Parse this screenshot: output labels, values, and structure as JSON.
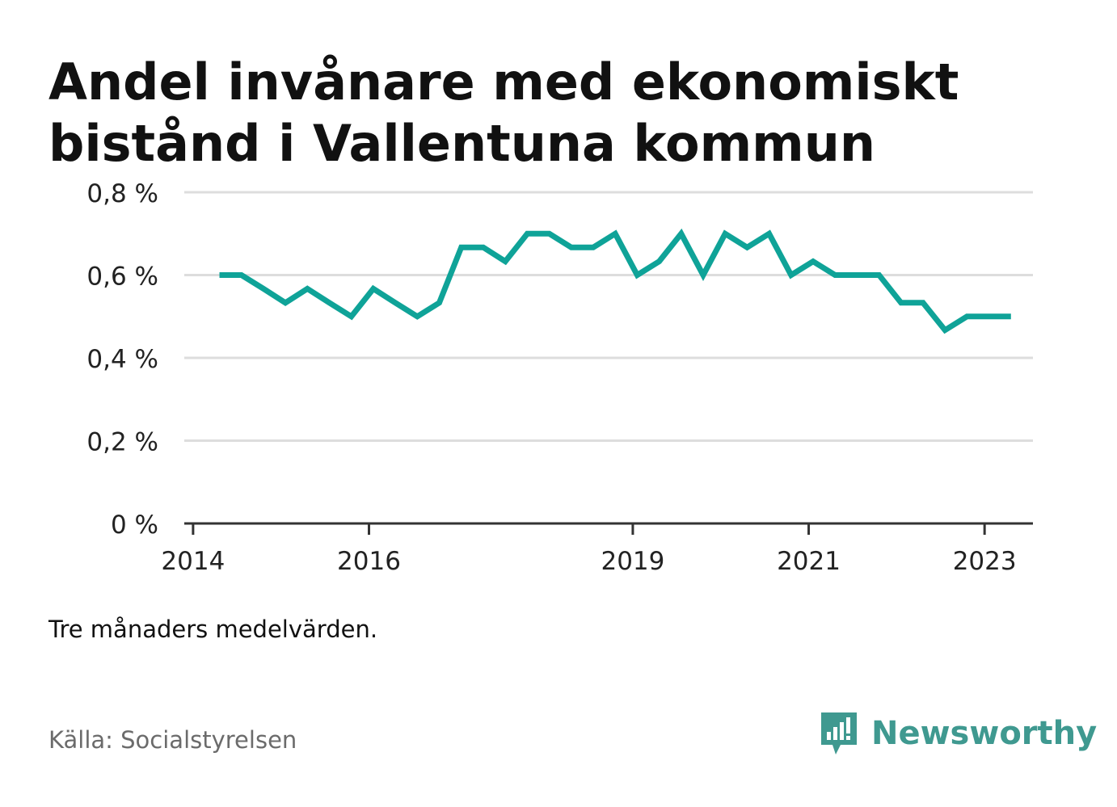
{
  "title": "Andel invånare med ekonomiskt bistånd i Vallentuna kommun",
  "note": "Tre månaders medelvärden.",
  "source": "Källa: Socialstyrelsen",
  "brand": {
    "name": "Newsworthy",
    "icon": "newsworthy-logo-icon",
    "color": "#3f9990"
  },
  "chart_data": {
    "type": "line",
    "title": "Andel invånare med ekonomiskt bistånd i Vallentuna kommun",
    "xlabel": "",
    "ylabel": "",
    "x_ticks": [
      {
        "label": "2014",
        "x": 2014.0
      },
      {
        "label": "2016",
        "x": 2016.0
      },
      {
        "label": "2019",
        "x": 2019.0
      },
      {
        "label": "2021",
        "x": 2021.0
      },
      {
        "label": "2023",
        "x": 2023.0
      }
    ],
    "y_ticks": [
      {
        "label": "0 %",
        "y": 0
      },
      {
        "label": "0,2 %",
        "y": 0.2
      },
      {
        "label": "0,4 %",
        "y": 0.4
      },
      {
        "label": "0,6 %",
        "y": 0.6
      },
      {
        "label": "0,8 %",
        "y": 0.8
      }
    ],
    "xlim": [
      2013.9,
      2023.55
    ],
    "ylim": [
      0,
      0.8
    ],
    "grid": true,
    "color": "#0fa398",
    "series": [
      {
        "x": [
          2014.3,
          2014.55,
          2014.8,
          2015.05,
          2015.3,
          2015.55,
          2015.8,
          2016.05,
          2016.3,
          2016.55,
          2016.8,
          2017.05,
          2017.3,
          2017.55,
          2017.8,
          2018.05,
          2018.3,
          2018.55,
          2018.8,
          2019.05,
          2019.3,
          2019.55,
          2019.8,
          2020.05,
          2020.3,
          2020.55,
          2020.8,
          2021.05,
          2021.3,
          2021.55,
          2021.8,
          2022.05,
          2022.3,
          2022.55,
          2022.8,
          2023.05,
          2023.3
        ],
        "values": [
          0.6,
          0.6,
          0.567,
          0.533,
          0.567,
          0.533,
          0.5,
          0.567,
          0.533,
          0.5,
          0.533,
          0.667,
          0.667,
          0.633,
          0.7,
          0.7,
          0.667,
          0.667,
          0.7,
          0.6,
          0.633,
          0.7,
          0.6,
          0.7,
          0.667,
          0.7,
          0.6,
          0.633,
          0.6,
          0.6,
          0.6,
          0.533,
          0.533,
          0.467,
          0.5,
          0.5,
          0.5
        ]
      }
    ]
  }
}
